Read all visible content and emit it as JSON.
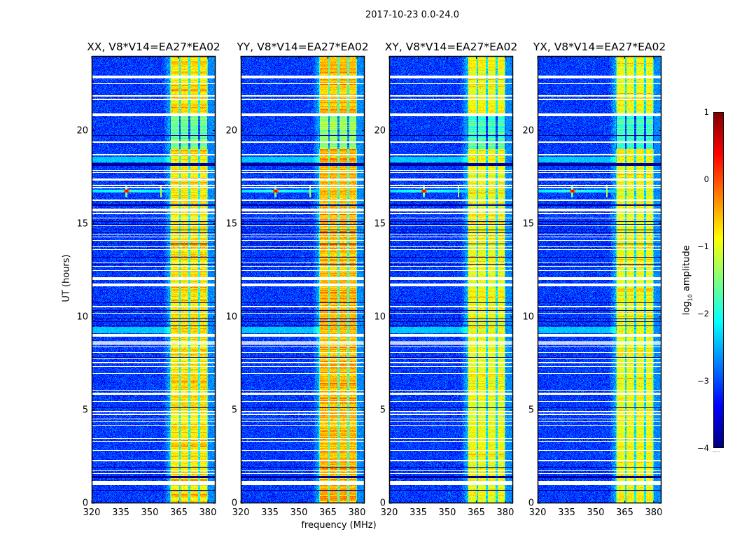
{
  "chart_data": {
    "type": "heatmap",
    "title": "2017-10-23 0.0-24.0",
    "xlabel": "frequency (MHz)",
    "ylabel": "UT (hours)",
    "xlim": [
      320,
      384
    ],
    "ylim": [
      0,
      24
    ],
    "xticks": [
      320,
      335,
      350,
      365,
      380
    ],
    "yticks": [
      0,
      5,
      10,
      15,
      20
    ],
    "colormap": "jet",
    "colorbar": {
      "label_main": "log",
      "label_sub": "10",
      "label_rest": " amplitude",
      "vmin": -4,
      "vmax": 1,
      "ticks": [
        1,
        0,
        -1,
        -2,
        -3,
        -4
      ],
      "tick_labels": [
        "1",
        "0",
        "−1",
        "−2",
        "−3",
        "−4"
      ]
    },
    "panels": [
      {
        "title": "XX, V8*V14=EA27*EA02",
        "band_level": -0.75
      },
      {
        "title": "YY, V8*V14=EA27*EA02",
        "band_level": -0.55
      },
      {
        "title": "XY, V8*V14=EA27*EA02",
        "band_level": -0.95
      },
      {
        "title": "YX, V8*V14=EA27*EA02",
        "band_level": -0.95
      }
    ],
    "background_level": -3.1,
    "band_mhz": [
      360.5,
      380
    ],
    "subband_edges_mhz": [
      360.5,
      365.5,
      370.5,
      375.5,
      380
    ],
    "flagged_rows_hours": [
      [
        22.8,
        22.95
      ],
      [
        22.5,
        22.55
      ],
      [
        21.83,
        21.88
      ],
      [
        21.65,
        21.7
      ],
      [
        20.77,
        20.92
      ],
      [
        19.36,
        19.41
      ],
      [
        18.68,
        18.73
      ],
      [
        17.83,
        17.88
      ],
      [
        17.73,
        17.78
      ],
      [
        17.3,
        17.42
      ],
      [
        17.03,
        17.08
      ],
      [
        16.91,
        16.96
      ],
      [
        16.24,
        16.29
      ],
      [
        15.66,
        15.81
      ],
      [
        15.53,
        15.58
      ],
      [
        15.28,
        15.32
      ],
      [
        14.88,
        14.92
      ],
      [
        14.43,
        14.47
      ],
      [
        14.28,
        14.32
      ],
      [
        14.08,
        14.12
      ],
      [
        13.73,
        13.77
      ],
      [
        13.58,
        13.62
      ],
      [
        12.88,
        12.92
      ],
      [
        12.68,
        12.72
      ],
      [
        12.48,
        12.52
      ],
      [
        12.0,
        12.15
      ],
      [
        11.65,
        11.8
      ],
      [
        10.53,
        10.58
      ],
      [
        10.16,
        10.2
      ],
      [
        8.94,
        9.09
      ],
      [
        8.68,
        8.72
      ],
      [
        8.58,
        8.62
      ],
      [
        8.48,
        8.52
      ],
      [
        8.38,
        8.42
      ],
      [
        8.08,
        8.12
      ],
      [
        7.72,
        7.76
      ],
      [
        7.53,
        7.57
      ],
      [
        7.34,
        7.38
      ],
      [
        6.96,
        7.0
      ],
      [
        6.06,
        6.1
      ],
      [
        5.91,
        5.95
      ],
      [
        5.84,
        5.88
      ],
      [
        5.46,
        5.5
      ],
      [
        4.9,
        4.94
      ],
      [
        4.75,
        4.79
      ],
      [
        4.52,
        4.56
      ],
      [
        4.37,
        4.41
      ],
      [
        4.18,
        4.22
      ],
      [
        3.47,
        3.51
      ],
      [
        3.32,
        3.36
      ],
      [
        2.83,
        2.87
      ],
      [
        2.27,
        2.31
      ],
      [
        1.71,
        1.75
      ],
      [
        1.56,
        1.6
      ],
      [
        0.98,
        1.2
      ]
    ],
    "dark_rows_hours": [
      [
        19.73,
        19.77
      ],
      [
        18.1,
        18.25
      ],
      [
        15.98,
        16.02
      ],
      [
        15.1,
        15.13
      ],
      [
        14.95,
        14.98
      ],
      [
        14.64,
        14.67
      ],
      [
        14.5,
        14.53
      ],
      [
        13.9,
        13.93
      ],
      [
        13.2,
        13.23
      ],
      [
        12.8,
        12.83
      ],
      [
        11.55,
        11.58
      ],
      [
        11.1,
        11.13
      ],
      [
        10.76,
        10.79
      ],
      [
        10.34,
        10.37
      ],
      [
        10.01,
        10.04
      ],
      [
        9.89,
        9.92
      ],
      [
        9.74,
        9.77
      ],
      [
        9.52,
        9.55
      ],
      [
        7.83,
        7.86
      ],
      [
        5.12,
        5.15
      ],
      [
        1.93,
        1.96
      ],
      [
        1.35,
        1.46
      ],
      [
        0.69,
        0.72
      ]
    ],
    "elevated_rows_hours": [
      [
        18.3,
        18.6
      ],
      [
        9.13,
        9.46
      ]
    ],
    "rfi_source": {
      "freq_mhz": 338,
      "time_hours": 16.75,
      "peak_level": 0.5,
      "secondary_freq_mhz": 355.7
    }
  }
}
